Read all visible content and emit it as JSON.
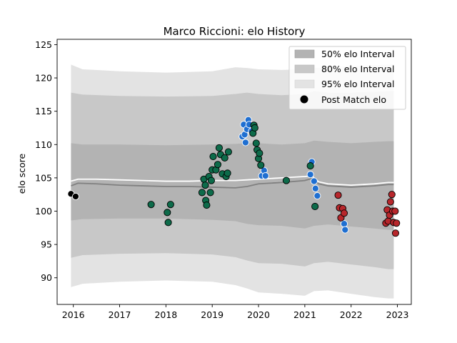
{
  "chart_data": {
    "type": "scatter",
    "title": "Marco Riccioni: elo History",
    "xlabel": "",
    "ylabel": "elo score",
    "xlim": [
      2015.65,
      2023.3
    ],
    "ylim": [
      86,
      125.8
    ],
    "x_ticks": [
      2016,
      2017,
      2018,
      2019,
      2020,
      2021,
      2022,
      2023
    ],
    "x_tick_labels": [
      "2016",
      "2017",
      "2018",
      "2019",
      "2020",
      "2021",
      "2022",
      "2023"
    ],
    "y_ticks": [
      90,
      95,
      100,
      105,
      110,
      115,
      120,
      125
    ],
    "y_tick_labels": [
      "90",
      "95",
      "100",
      "105",
      "110",
      "115",
      "120",
      "125"
    ],
    "grid": false,
    "legend_position": "top-right",
    "legend": [
      {
        "label": "50% elo Interval",
        "kind": "band",
        "color": "#b3b3b3"
      },
      {
        "label": "80% elo Interval",
        "kind": "band",
        "color": "#c8c8c8"
      },
      {
        "label": "95% elo Interval",
        "kind": "band",
        "color": "#e3e3e3"
      },
      {
        "label": "Post Match elo",
        "kind": "marker",
        "color": "#000000"
      }
    ],
    "bands": {
      "x": [
        2015.95,
        2016.2,
        2017.0,
        2018.0,
        2019.0,
        2019.5,
        2019.75,
        2020.0,
        2020.5,
        2021.0,
        2021.2,
        2021.5,
        2022.0,
        2022.5,
        2022.8,
        2022.92
      ],
      "band95_upper": [
        122.0,
        121.3,
        121.0,
        120.8,
        121.0,
        121.6,
        121.5,
        121.3,
        121.2,
        121.3,
        121.5,
        121.6,
        121.8,
        121.9,
        122.0,
        122.0
      ],
      "band95_lower": [
        88.6,
        89.1,
        89.4,
        89.6,
        89.4,
        88.9,
        88.4,
        87.8,
        87.6,
        87.3,
        88.0,
        88.1,
        87.6,
        87.1,
        86.9,
        86.9
      ],
      "band80_upper": [
        117.8,
        117.5,
        117.3,
        117.2,
        117.3,
        117.6,
        117.8,
        117.6,
        117.4,
        117.6,
        118.0,
        117.8,
        117.8,
        117.9,
        118.0,
        118.0
      ],
      "band80_lower": [
        93.0,
        93.4,
        93.6,
        93.7,
        93.5,
        93.1,
        92.6,
        92.2,
        92.1,
        91.7,
        92.2,
        92.4,
        92.0,
        91.6,
        91.3,
        91.3
      ],
      "band50_upper": [
        110.2,
        110.0,
        110.0,
        109.9,
        110.0,
        110.1,
        110.2,
        110.2,
        110.0,
        110.2,
        110.6,
        110.4,
        110.2,
        110.4,
        110.5,
        110.5
      ],
      "band50_lower": [
        98.6,
        98.8,
        98.9,
        98.9,
        98.7,
        98.5,
        98.1,
        97.9,
        97.8,
        97.4,
        97.8,
        98.0,
        97.7,
        97.4,
        97.2,
        97.2
      ]
    },
    "lines": [
      {
        "color": "#ffffff",
        "x": [
          2015.95,
          2016.1,
          2016.5,
          2017.0,
          2017.5,
          2018.0,
          2018.5,
          2019.0,
          2019.5,
          2019.75,
          2020.0,
          2020.5,
          2021.0,
          2021.15,
          2021.3,
          2021.5,
          2022.0,
          2022.5,
          2022.8,
          2022.92
        ],
        "y": [
          104.5,
          104.8,
          104.8,
          104.7,
          104.6,
          104.5,
          104.5,
          104.6,
          104.6,
          104.7,
          104.8,
          105.0,
          105.2,
          105.3,
          104.4,
          104.1,
          103.9,
          104.1,
          104.3,
          104.3
        ]
      },
      {
        "color": "#808080",
        "x": [
          2015.95,
          2016.1,
          2016.5,
          2017.0,
          2017.5,
          2018.0,
          2018.5,
          2019.0,
          2019.5,
          2019.75,
          2020.0,
          2020.5,
          2021.0,
          2021.15,
          2021.3,
          2021.5,
          2022.0,
          2022.5,
          2022.8,
          2022.92
        ],
        "y": [
          103.8,
          104.2,
          104.1,
          103.9,
          103.8,
          103.7,
          103.7,
          103.6,
          103.5,
          103.7,
          104.1,
          104.3,
          104.6,
          104.9,
          104.1,
          103.8,
          103.6,
          103.8,
          104.0,
          104.0
        ]
      }
    ],
    "series": [
      {
        "color": "#000000",
        "edge": "#ffffff",
        "points": [
          [
            2015.95,
            102.6
          ],
          [
            2016.05,
            102.2
          ]
        ]
      },
      {
        "color": "#0d6b4a",
        "edge": "#000000",
        "points": [
          [
            2017.68,
            101.0
          ],
          [
            2018.03,
            99.8
          ],
          [
            2018.05,
            98.3
          ],
          [
            2018.1,
            101.0
          ],
          [
            2018.78,
            102.8
          ],
          [
            2018.82,
            104.8
          ],
          [
            2018.85,
            103.9
          ],
          [
            2018.86,
            101.6
          ],
          [
            2018.88,
            100.9
          ],
          [
            2018.93,
            105.2
          ],
          [
            2018.96,
            102.8
          ],
          [
            2018.98,
            104.6
          ],
          [
            2019.0,
            106.2
          ],
          [
            2019.02,
            108.2
          ],
          [
            2019.08,
            106.2
          ],
          [
            2019.12,
            107.0
          ],
          [
            2019.15,
            109.5
          ],
          [
            2019.18,
            108.5
          ],
          [
            2019.22,
            105.6
          ],
          [
            2019.27,
            108.0
          ],
          [
            2019.3,
            105.2
          ],
          [
            2019.33,
            105.7
          ],
          [
            2019.35,
            108.9
          ],
          [
            2020.6,
            104.6
          ],
          [
            2021.22,
            100.7
          ]
        ]
      },
      {
        "color": "#1f6fd1",
        "edge": "#ffffff",
        "points": [
          [
            2019.65,
            111.2
          ],
          [
            2019.68,
            113.0
          ],
          [
            2019.7,
            111.5
          ],
          [
            2019.72,
            110.3
          ],
          [
            2019.75,
            112.3
          ],
          [
            2019.78,
            113.7
          ],
          [
            2019.8,
            113.0
          ],
          [
            2019.85,
            112.0
          ],
          [
            2020.07,
            105.3
          ],
          [
            2020.12,
            106.1
          ],
          [
            2020.15,
            105.3
          ],
          [
            2021.12,
            105.5
          ],
          [
            2021.15,
            107.4
          ],
          [
            2021.2,
            104.5
          ],
          [
            2021.23,
            103.4
          ],
          [
            2021.27,
            102.3
          ],
          [
            2021.85,
            98.1
          ],
          [
            2021.87,
            97.2
          ]
        ]
      },
      {
        "color": "#0d6b4a",
        "edge": "#000000",
        "points": [
          [
            2019.88,
            111.7
          ],
          [
            2019.9,
            112.9
          ],
          [
            2019.92,
            112.5
          ],
          [
            2019.95,
            110.2
          ],
          [
            2019.97,
            109.2
          ],
          [
            2020.0,
            107.9
          ],
          [
            2020.02,
            108.7
          ],
          [
            2020.05,
            106.9
          ],
          [
            2021.12,
            106.8
          ]
        ]
      },
      {
        "color": "#b7272c",
        "edge": "#000000",
        "points": [
          [
            2021.72,
            102.4
          ],
          [
            2021.75,
            100.5
          ],
          [
            2021.78,
            99.0
          ],
          [
            2021.82,
            100.4
          ],
          [
            2021.85,
            99.7
          ],
          [
            2022.75,
            98.2
          ],
          [
            2022.78,
            100.2
          ],
          [
            2022.8,
            98.5
          ],
          [
            2022.83,
            99.4
          ],
          [
            2022.85,
            101.4
          ],
          [
            2022.88,
            102.5
          ],
          [
            2022.9,
            100.0
          ],
          [
            2022.92,
            98.3
          ],
          [
            2022.95,
            100.0
          ],
          [
            2022.96,
            96.7
          ],
          [
            2022.98,
            98.2
          ]
        ]
      }
    ]
  }
}
